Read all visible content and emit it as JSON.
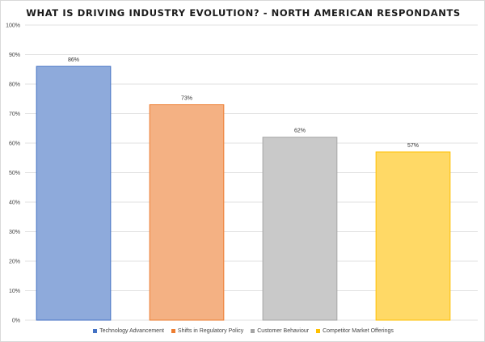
{
  "chart_data": {
    "type": "bar",
    "title": "WHAT IS DRIVING INDUSTRY EVOLUTION? - NORTH AMERICAN RESPONDANTS",
    "categories": [
      "Technology Advancement",
      "Shifts in Regulatory Policy",
      "Customer Behaviour",
      "Competitor Market Offerings"
    ],
    "values": [
      86,
      73,
      62,
      57
    ],
    "data_labels": [
      "86%",
      "73%",
      "62%",
      "57%"
    ],
    "colors": [
      "#8eaadb",
      "#f4b183",
      "#c9c9c9",
      "#ffd966"
    ],
    "border_colors": [
      "#4472c4",
      "#ed7d31",
      "#a5a5a5",
      "#ffc000"
    ],
    "ylim": [
      0,
      100
    ],
    "yticks": [
      0,
      10,
      20,
      30,
      40,
      50,
      60,
      70,
      80,
      90,
      100
    ],
    "ytick_labels": [
      "0%",
      "10%",
      "20%",
      "30%",
      "40%",
      "50%",
      "60%",
      "70%",
      "80%",
      "90%",
      "100%"
    ],
    "grid": true,
    "legend_position": "bottom",
    "gridline_color": "#d9d9d9"
  }
}
